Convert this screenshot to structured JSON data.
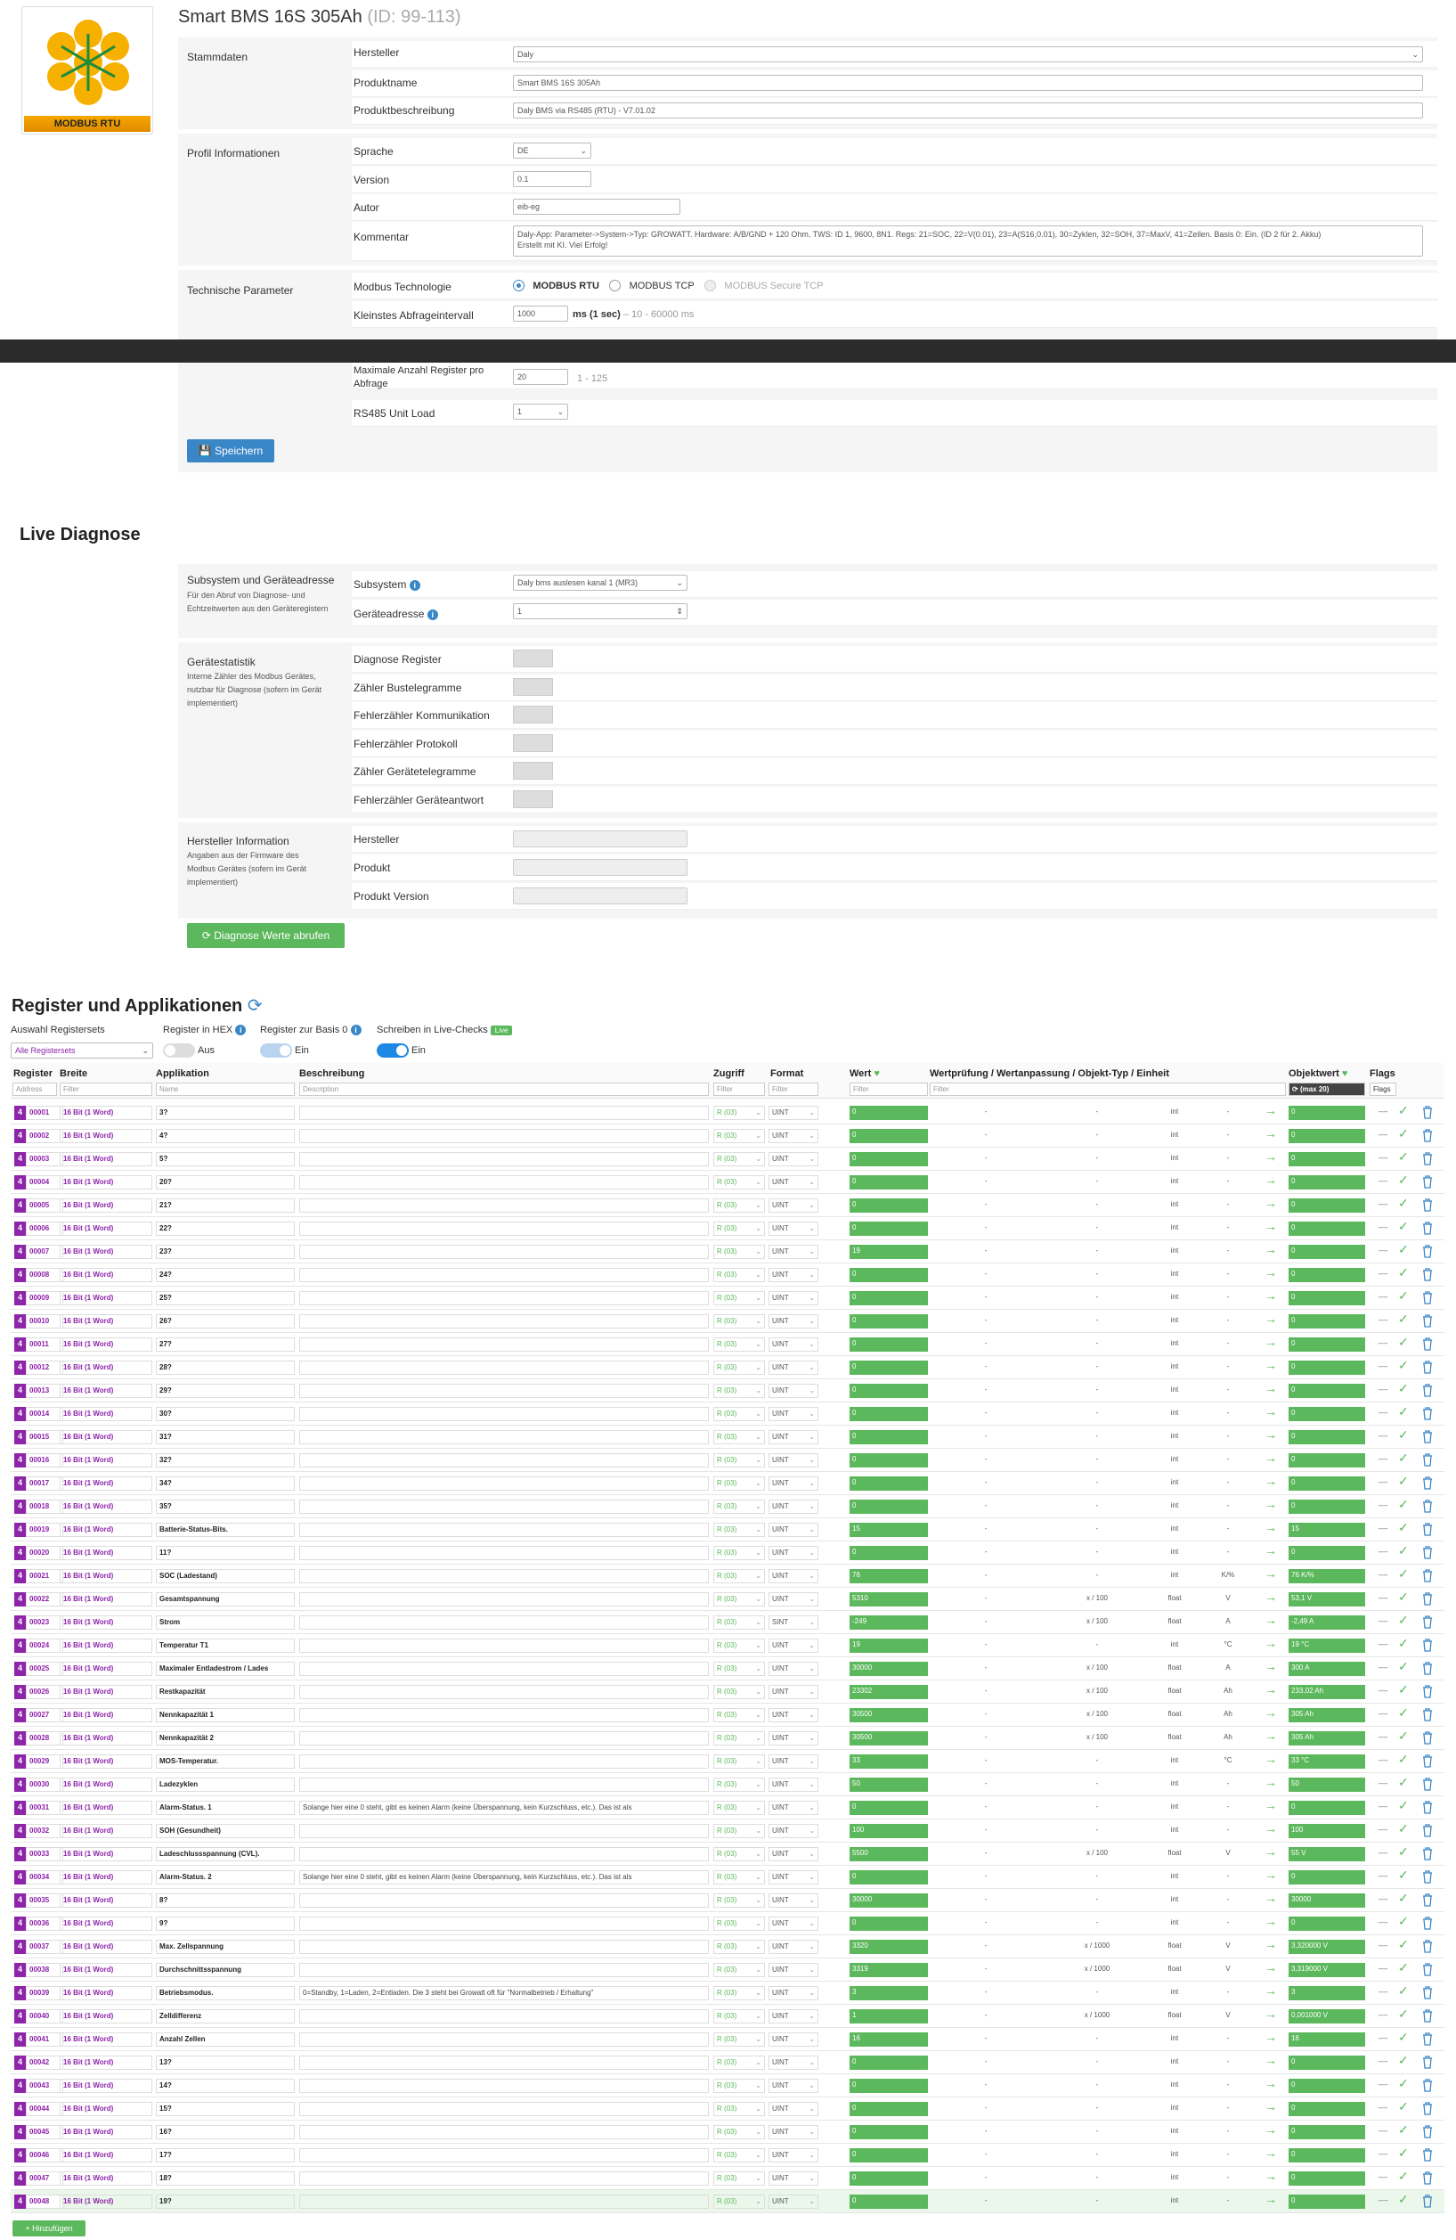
{
  "header": {
    "title": "Smart BMS 16S 305Ah",
    "id_text": "(ID: 99-113)",
    "logo_label": "MODBUS RTU"
  },
  "stammdaten": {
    "section": "Stammdaten",
    "hersteller_label": "Hersteller",
    "hersteller": "Daly",
    "produktname_label": "Produktname",
    "produktname": "Smart BMS 16S 305Ah",
    "beschreibung_label": "Produktbeschreibung",
    "beschreibung": "Daly BMS via RS485 (RTU) - V7.01.02"
  },
  "profil": {
    "section": "Profil Informationen",
    "sprache_label": "Sprache",
    "sprache": "DE",
    "version_label": "Version",
    "version": "0.1",
    "autor_label": "Autor",
    "autor": "eib-eg",
    "kommentar_label": "Kommentar",
    "kommentar_1": "Daly-App: Parameter->System->Typ: GROWATT. Hardware: A/B/GND + 120 Ohm. TWS: ID 1, 9600, 8N1. Regs: 21=SOC, 22=V(0.01), 23=A(S16,0.01), 30=Zyklen, 32=SOH, 37=MaxV, 41=Zellen. Basis 0: Ein. (ID 2 für 2. Akku)",
    "kommentar_2": "Erstellt mit KI. Viel Erfolg!"
  },
  "technik": {
    "section": "Technische Parameter",
    "modbus_label": "Modbus Technologie",
    "opt_rtu": "MODBUS RTU",
    "opt_tcp": "MODBUS TCP",
    "opt_secure": "MODBUS Secure TCP",
    "intervall_label": "Kleinstes Abfrageintervall",
    "intervall": "1000",
    "intervall_unit": "ms (1 sec)",
    "intervall_hint": "– 10 - 60000 ms",
    "maxreg_label_1": "Maximale Anzahl Register pro",
    "maxreg_label_2": "Abfrage",
    "maxreg": "20",
    "maxreg_hint": "1 - 125",
    "unitload_label": "RS485 Unit Load",
    "unitload": "1",
    "save": "Speichern"
  },
  "live": {
    "title": "Live Diagnose",
    "subsys_section": "Subsystem und Geräteadresse",
    "subsys_sub": "Für den Abruf von Diagnose- und Echtzeitwerten aus den Geräteregistern",
    "subsys_label": "Subsystem",
    "subsys": "Daly bms auslesen kanal 1 (MR3)",
    "addr_label": "Geräteadresse",
    "addr": "1",
    "stat_section": "Gerätestatistik",
    "stat_sub": "Interne Zähler des Modbus Gerätes, nutzbar für Diagnose (sofern im Gerät implementiert)",
    "stats": [
      "Diagnose Register",
      "Zähler Bustelegramme",
      "Fehlerzähler Kommunikation",
      "Fehlerzähler Protokoll",
      "Zähler Gerätetelegramme",
      "Fehlerzähler Geräteantwort"
    ],
    "herst_section": "Hersteller Information",
    "herst_sub": "Angaben aus der Firmware des Modbus Gerätes (sofern im Gerät implementiert)",
    "herst_fields": [
      "Hersteller",
      "Produkt",
      "Produkt Version"
    ],
    "btn": "Diagnose Werte abrufen"
  },
  "register": {
    "title": "Register und Applikationen",
    "regset_label": "Auswahl Registersets",
    "regset": "Alle Registersets",
    "hex_label": "Register in HEX",
    "hex_state": "Aus",
    "basis_label": "Register zur Basis 0",
    "basis_state": "Ein",
    "write_label": "Schreiben in Live-Checks",
    "write_badge": "Live",
    "write_state": "Ein",
    "cols": {
      "register": "Register",
      "breite": "Breite",
      "app": "Applikation",
      "desc": "Beschreibung",
      "zugriff": "Zugriff",
      "format": "Format",
      "wert": "Wert",
      "wertpr": "Wertprüfung / Wertanpassung / Objekt-Typ / Einheit",
      "objwert": "Objektwert",
      "flags": "Flags"
    },
    "filters": {
      "address": "Address",
      "filter": "Filter",
      "name": "Name",
      "description": "Description",
      "max": "(max 20)",
      "flags": "Flags"
    },
    "add_btn": "+ Hinzufügen",
    "rows": [
      {
        "a": "00001",
        "w": "16 Bit (1 Word)",
        "n": "3?",
        "d": "",
        "acc": "R (03)",
        "f": "UINT",
        "v": "0",
        "v1": "-",
        "v2": "-",
        "t": "int",
        "u": "-",
        "o": "0",
        "fl": "----"
      },
      {
        "a": "00002",
        "w": "16 Bit (1 Word)",
        "n": "4?",
        "d": "",
        "acc": "R (03)",
        "f": "UINT",
        "v": "0",
        "v1": "-",
        "v2": "-",
        "t": "int",
        "u": "-",
        "o": "0",
        "fl": "----"
      },
      {
        "a": "00003",
        "w": "16 Bit (1 Word)",
        "n": "5?",
        "d": "",
        "acc": "R (03)",
        "f": "UINT",
        "v": "0",
        "v1": "-",
        "v2": "-",
        "t": "int",
        "u": "-",
        "o": "0",
        "fl": "----"
      },
      {
        "a": "00004",
        "w": "16 Bit (1 Word)",
        "n": "20?",
        "d": "",
        "acc": "R (03)",
        "f": "UINT",
        "v": "0",
        "v1": "-",
        "v2": "-",
        "t": "int",
        "u": "-",
        "o": "0",
        "fl": "----"
      },
      {
        "a": "00005",
        "w": "16 Bit (1 Word)",
        "n": "21?",
        "d": "",
        "acc": "R (03)",
        "f": "UINT",
        "v": "0",
        "v1": "-",
        "v2": "-",
        "t": "int",
        "u": "-",
        "o": "0",
        "fl": "----"
      },
      {
        "a": "00006",
        "w": "16 Bit (1 Word)",
        "n": "22?",
        "d": "",
        "acc": "R (03)",
        "f": "UINT",
        "v": "0",
        "v1": "-",
        "v2": "-",
        "t": "int",
        "u": "-",
        "o": "0",
        "fl": "----"
      },
      {
        "a": "00007",
        "w": "16 Bit (1 Word)",
        "n": "23?",
        "d": "",
        "acc": "R (03)",
        "f": "UINT",
        "v": "19",
        "v1": "-",
        "v2": "-",
        "t": "int",
        "u": "-",
        "o": "0",
        "fl": "----"
      },
      {
        "a": "00008",
        "w": "16 Bit (1 Word)",
        "n": "24?",
        "d": "",
        "acc": "R (03)",
        "f": "UINT",
        "v": "0",
        "v1": "-",
        "v2": "-",
        "t": "int",
        "u": "-",
        "o": "0",
        "fl": "----"
      },
      {
        "a": "00009",
        "w": "16 Bit (1 Word)",
        "n": "25?",
        "d": "",
        "acc": "R (03)",
        "f": "UINT",
        "v": "0",
        "v1": "-",
        "v2": "-",
        "t": "int",
        "u": "-",
        "o": "0",
        "fl": "----"
      },
      {
        "a": "00010",
        "w": "16 Bit (1 Word)",
        "n": "26?",
        "d": "",
        "acc": "R (03)",
        "f": "UINT",
        "v": "0",
        "v1": "-",
        "v2": "-",
        "t": "int",
        "u": "-",
        "o": "0",
        "fl": "----"
      },
      {
        "a": "00011",
        "w": "16 Bit (1 Word)",
        "n": "27?",
        "d": "",
        "acc": "R (03)",
        "f": "UINT",
        "v": "0",
        "v1": "-",
        "v2": "-",
        "t": "int",
        "u": "-",
        "o": "0",
        "fl": "----"
      },
      {
        "a": "00012",
        "w": "16 Bit (1 Word)",
        "n": "28?",
        "d": "",
        "acc": "R (03)",
        "f": "UINT",
        "v": "0",
        "v1": "-",
        "v2": "-",
        "t": "int",
        "u": "-",
        "o": "0",
        "fl": "----"
      },
      {
        "a": "00013",
        "w": "16 Bit (1 Word)",
        "n": "29?",
        "d": "",
        "acc": "R (03)",
        "f": "UINT",
        "v": "0",
        "v1": "-",
        "v2": "-",
        "t": "int",
        "u": "-",
        "o": "0",
        "fl": "----"
      },
      {
        "a": "00014",
        "w": "16 Bit (1 Word)",
        "n": "30?",
        "d": "",
        "acc": "R (03)",
        "f": "UINT",
        "v": "0",
        "v1": "-",
        "v2": "-",
        "t": "int",
        "u": "-",
        "o": "0",
        "fl": "----"
      },
      {
        "a": "00015",
        "w": "16 Bit (1 Word)",
        "n": "31?",
        "d": "",
        "acc": "R (03)",
        "f": "UINT",
        "v": "0",
        "v1": "-",
        "v2": "-",
        "t": "int",
        "u": "-",
        "o": "0",
        "fl": "----"
      },
      {
        "a": "00016",
        "w": "16 Bit (1 Word)",
        "n": "32?",
        "d": "",
        "acc": "R (03)",
        "f": "UINT",
        "v": "0",
        "v1": "-",
        "v2": "-",
        "t": "int",
        "u": "-",
        "o": "0",
        "fl": "----"
      },
      {
        "a": "00017",
        "w": "16 Bit (1 Word)",
        "n": "34?",
        "d": "",
        "acc": "R (03)",
        "f": "UINT",
        "v": "0",
        "v1": "-",
        "v2": "-",
        "t": "int",
        "u": "-",
        "o": "0",
        "fl": "----"
      },
      {
        "a": "00018",
        "w": "16 Bit (1 Word)",
        "n": "35?",
        "d": "",
        "acc": "R (03)",
        "f": "UINT",
        "v": "0",
        "v1": "-",
        "v2": "-",
        "t": "int",
        "u": "-",
        "o": "0",
        "fl": "----"
      },
      {
        "a": "00019",
        "w": "16 Bit (1 Word)",
        "n": "Batterie-Status-Bits.",
        "d": "",
        "acc": "R (03)",
        "f": "UINT",
        "v": "15",
        "v1": "-",
        "v2": "-",
        "t": "int",
        "u": "-",
        "o": "15",
        "fl": "----"
      },
      {
        "a": "00020",
        "w": "16 Bit (1 Word)",
        "n": "11?",
        "d": "",
        "acc": "R (03)",
        "f": "UINT",
        "v": "0",
        "v1": "-",
        "v2": "-",
        "t": "int",
        "u": "-",
        "o": "0",
        "fl": "----"
      },
      {
        "a": "00021",
        "w": "16 Bit (1 Word)",
        "n": "SOC (Ladestand)",
        "d": "",
        "acc": "R (03)",
        "f": "UINT",
        "v": "76",
        "v1": "-",
        "v2": "-",
        "t": "int",
        "u": "K/%",
        "o": "76 K/%",
        "fl": "----"
      },
      {
        "a": "00022",
        "w": "16 Bit (1 Word)",
        "n": "Gesamtspannung",
        "d": "",
        "acc": "R (03)",
        "f": "UINT",
        "v": "5310",
        "v1": "-",
        "v2": "x / 100",
        "t": "float",
        "u": "V",
        "o": "53,1 V",
        "fl": "----"
      },
      {
        "a": "00023",
        "w": "16 Bit (1 Word)",
        "n": "Strom",
        "d": "",
        "acc": "R (03)",
        "f": "SINT",
        "v": "-249",
        "v1": "-",
        "v2": "x / 100",
        "t": "float",
        "u": "A",
        "o": "-2,49 A",
        "fl": "----"
      },
      {
        "a": "00024",
        "w": "16 Bit (1 Word)",
        "n": "Temperatur T1",
        "d": "",
        "acc": "R (03)",
        "f": "UINT",
        "v": "19",
        "v1": "-",
        "v2": "-",
        "t": "int",
        "u": "°C",
        "o": "19 °C",
        "fl": "----"
      },
      {
        "a": "00025",
        "w": "16 Bit (1 Word)",
        "n": "Maximaler Entladestrom / Lades",
        "d": "",
        "acc": "R (03)",
        "f": "UINT",
        "v": "30000",
        "v1": "-",
        "v2": "x / 100",
        "t": "float",
        "u": "A",
        "o": "300 A",
        "fl": "----"
      },
      {
        "a": "00026",
        "w": "16 Bit (1 Word)",
        "n": "Restkapazität",
        "d": "",
        "acc": "R (03)",
        "f": "UINT",
        "v": "23302",
        "v1": "-",
        "v2": "x / 100",
        "t": "float",
        "u": "Ah",
        "o": "233,02 Ah",
        "fl": "----"
      },
      {
        "a": "00027",
        "w": "16 Bit (1 Word)",
        "n": "Nennkapazität 1",
        "d": "",
        "acc": "R (03)",
        "f": "UINT",
        "v": "30500",
        "v1": "-",
        "v2": "x / 100",
        "t": "float",
        "u": "Ah",
        "o": "305 Ah",
        "fl": "----"
      },
      {
        "a": "00028",
        "w": "16 Bit (1 Word)",
        "n": "Nennkapazität 2",
        "d": "",
        "acc": "R (03)",
        "f": "UINT",
        "v": "30500",
        "v1": "-",
        "v2": "x / 100",
        "t": "float",
        "u": "Ah",
        "o": "305 Ah",
        "fl": "----"
      },
      {
        "a": "00029",
        "w": "16 Bit (1 Word)",
        "n": "MOS-Temperatur.",
        "d": "",
        "acc": "R (03)",
        "f": "UINT",
        "v": "33",
        "v1": "-",
        "v2": "-",
        "t": "int",
        "u": "°C",
        "o": "33 °C",
        "fl": "----"
      },
      {
        "a": "00030",
        "w": "16 Bit (1 Word)",
        "n": "Ladezyklen",
        "d": "",
        "acc": "R (03)",
        "f": "UINT",
        "v": "50",
        "v1": "-",
        "v2": "-",
        "t": "int",
        "u": "-",
        "o": "50",
        "fl": "----"
      },
      {
        "a": "00031",
        "w": "16 Bit (1 Word)",
        "n": "Alarm-Status. 1",
        "d": "Solange hier eine 0 steht, gibt es keinen Alarm (keine Überspannung, kein Kurzschluss, etc.). Das ist als",
        "acc": "R (03)",
        "f": "UINT",
        "v": "0",
        "v1": "-",
        "v2": "-",
        "t": "int",
        "u": "-",
        "o": "0",
        "fl": "----"
      },
      {
        "a": "00032",
        "w": "16 Bit (1 Word)",
        "n": "SOH (Gesundheit)",
        "d": "",
        "acc": "R (03)",
        "f": "UINT",
        "v": "100",
        "v1": "-",
        "v2": "-",
        "t": "int",
        "u": "-",
        "o": "100",
        "fl": "----"
      },
      {
        "a": "00033",
        "w": "16 Bit (1 Word)",
        "n": "Ladeschlussspannung (CVL).",
        "d": "",
        "acc": "R (03)",
        "f": "UINT",
        "v": "5500",
        "v1": "-",
        "v2": "x / 100",
        "t": "float",
        "u": "V",
        "o": "55 V",
        "fl": "----"
      },
      {
        "a": "00034",
        "w": "16 Bit (1 Word)",
        "n": "Alarm-Status. 2",
        "d": "Solange hier eine 0 steht, gibt es keinen Alarm (keine Überspannung, kein Kurzschluss, etc.). Das ist als",
        "acc": "R (03)",
        "f": "UINT",
        "v": "0",
        "v1": "-",
        "v2": "-",
        "t": "int",
        "u": "-",
        "o": "0",
        "fl": "----"
      },
      {
        "a": "00035",
        "w": "16 Bit (1 Word)",
        "n": "8?",
        "d": "",
        "acc": "R (03)",
        "f": "UINT",
        "v": "30000",
        "v1": "-",
        "v2": "-",
        "t": "int",
        "u": "-",
        "o": "30000",
        "fl": "----"
      },
      {
        "a": "00036",
        "w": "16 Bit (1 Word)",
        "n": "9?",
        "d": "",
        "acc": "R (03)",
        "f": "UINT",
        "v": "0",
        "v1": "-",
        "v2": "-",
        "t": "int",
        "u": "-",
        "o": "0",
        "fl": "----"
      },
      {
        "a": "00037",
        "w": "16 Bit (1 Word)",
        "n": "Max. Zellspannung",
        "d": "",
        "acc": "R (03)",
        "f": "UINT",
        "v": "3320",
        "v1": "-",
        "v2": "x / 1000",
        "t": "float",
        "u": "V",
        "o": "3,320000 V",
        "fl": "----"
      },
      {
        "a": "00038",
        "w": "16 Bit (1 Word)",
        "n": "Durchschnittsspannung",
        "d": "",
        "acc": "R (03)",
        "f": "UINT",
        "v": "3319",
        "v1": "-",
        "v2": "x / 1000",
        "t": "float",
        "u": "V",
        "o": "3,319000 V",
        "fl": "----"
      },
      {
        "a": "00039",
        "w": "16 Bit (1 Word)",
        "n": "Betriebsmodus.",
        "d": "0=Standby, 1=Laden, 2=Entladen. Die 3 steht bei Growatt oft für \"Normalbetrieb / Erhaltung\"",
        "acc": "R (03)",
        "f": "UINT",
        "v": "3",
        "v1": "-",
        "v2": "-",
        "t": "int",
        "u": "-",
        "o": "3",
        "fl": "----"
      },
      {
        "a": "00040",
        "w": "16 Bit (1 Word)",
        "n": "Zelldifferenz",
        "d": "",
        "acc": "R (03)",
        "f": "UINT",
        "v": "1",
        "v1": "-",
        "v2": "x / 1000",
        "t": "float",
        "u": "V",
        "o": "0,001000 V",
        "fl": "----"
      },
      {
        "a": "00041",
        "w": "16 Bit (1 Word)",
        "n": "Anzahl Zellen",
        "d": "",
        "acc": "R (03)",
        "f": "UINT",
        "v": "16",
        "v1": "-",
        "v2": "-",
        "t": "int",
        "u": "-",
        "o": "16",
        "fl": "----"
      },
      {
        "a": "00042",
        "w": "16 Bit (1 Word)",
        "n": "13?",
        "d": "",
        "acc": "R (03)",
        "f": "UINT",
        "v": "0",
        "v1": "-",
        "v2": "-",
        "t": "int",
        "u": "-",
        "o": "0",
        "fl": "----"
      },
      {
        "a": "00043",
        "w": "16 Bit (1 Word)",
        "n": "14?",
        "d": "",
        "acc": "R (03)",
        "f": "UINT",
        "v": "0",
        "v1": "-",
        "v2": "-",
        "t": "int",
        "u": "-",
        "o": "0",
        "fl": "----"
      },
      {
        "a": "00044",
        "w": "16 Bit (1 Word)",
        "n": "15?",
        "d": "",
        "acc": "R (03)",
        "f": "UINT",
        "v": "0",
        "v1": "-",
        "v2": "-",
        "t": "int",
        "u": "-",
        "o": "0",
        "fl": "----"
      },
      {
        "a": "00045",
        "w": "16 Bit (1 Word)",
        "n": "16?",
        "d": "",
        "acc": "R (03)",
        "f": "UINT",
        "v": "0",
        "v1": "-",
        "v2": "-",
        "t": "int",
        "u": "-",
        "o": "0",
        "fl": "----"
      },
      {
        "a": "00046",
        "w": "16 Bit (1 Word)",
        "n": "17?",
        "d": "",
        "acc": "R (03)",
        "f": "UINT",
        "v": "0",
        "v1": "-",
        "v2": "-",
        "t": "int",
        "u": "-",
        "o": "0",
        "fl": "----"
      },
      {
        "a": "00047",
        "w": "16 Bit (1 Word)",
        "n": "18?",
        "d": "",
        "acc": "R (03)",
        "f": "UINT",
        "v": "0",
        "v1": "-",
        "v2": "-",
        "t": "int",
        "u": "-",
        "o": "0",
        "fl": "----"
      },
      {
        "a": "00048",
        "w": "16 Bit (1 Word)",
        "n": "19?",
        "d": "",
        "acc": "R (03)",
        "f": "UINT",
        "v": "0",
        "v1": "-",
        "v2": "-",
        "t": "int",
        "u": "-",
        "o": "0",
        "fl": "----"
      }
    ]
  },
  "colors": {
    "accent": "#3a87c8",
    "green": "#5cb85c",
    "purple": "#8e24aa",
    "logo_orange": "#f6a800"
  }
}
